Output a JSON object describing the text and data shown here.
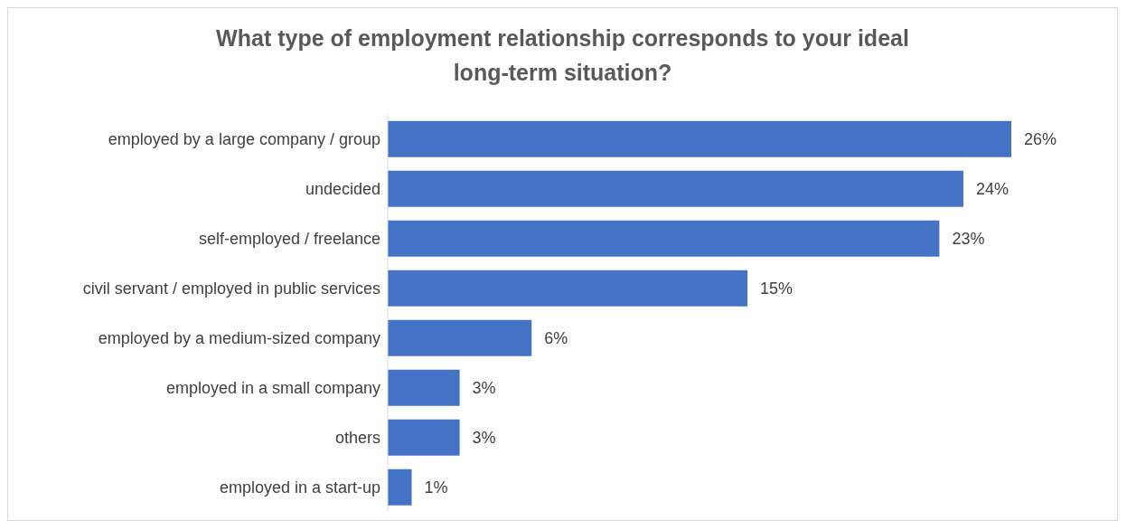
{
  "chart_data": {
    "type": "bar",
    "orientation": "horizontal",
    "title": "What type of employment relationship corresponds to your ideal long-term situation?",
    "categories": [
      "employed by a large company / group",
      "undecided",
      "self-employed / freelance",
      "civil servant / employed in public services",
      "employed by a medium-sized company",
      "employed in a small company",
      "others",
      "employed in a start-up"
    ],
    "values": [
      26,
      24,
      23,
      15,
      6,
      3,
      3,
      1
    ],
    "value_labels": [
      "26%",
      "24%",
      "23%",
      "15%",
      "6%",
      "3%",
      "3%",
      "1%"
    ],
    "color": "#4472c4"
  }
}
